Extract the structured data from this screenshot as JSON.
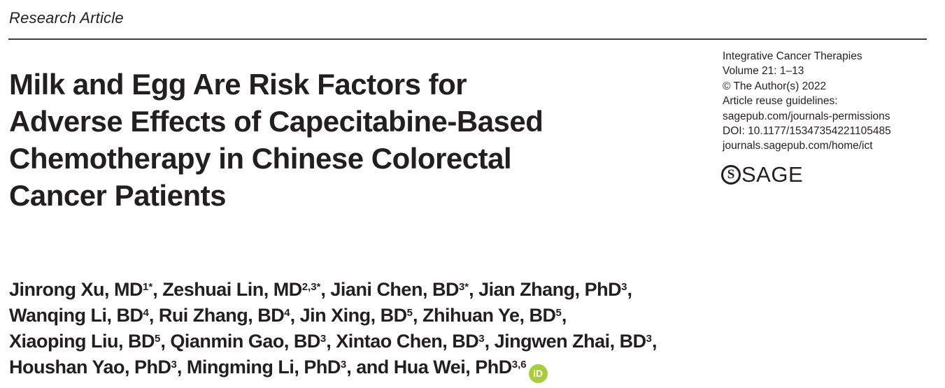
{
  "kicker": "Research Article",
  "title": {
    "lines": [
      "Milk and Egg Are Risk Factors for",
      "Adverse Effects of Capecitabine-Based",
      "Chemotherapy in Chinese Colorectal",
      "Cancer Patients"
    ]
  },
  "journal_info": {
    "journal_name": "Integrative Cancer Therapies",
    "volume_pages": "Volume 21: 1–13",
    "copyright": "© The Author(s) 2022",
    "reuse_label": "Article reuse guidelines:",
    "permissions_url": "sagepub.com/journals-permissions",
    "doi": "DOI: 10.1177/15347354221105485",
    "homepage_url": "journals.sagepub.com/home/ict"
  },
  "publisher": {
    "logo_mark": "S",
    "logo_text": "SAGE"
  },
  "authors": {
    "orcid_label": "iD",
    "lines": [
      [
        {
          "text": "Jinrong Xu, MD"
        },
        {
          "sup": "1*"
        },
        {
          "text": ", Zeshuai Lin, MD"
        },
        {
          "sup": "2,3*"
        },
        {
          "text": ", Jiani Chen, BD"
        },
        {
          "sup": "3*"
        },
        {
          "text": ", Jian Zhang, PhD"
        },
        {
          "sup": "3"
        },
        {
          "text": ","
        }
      ],
      [
        {
          "text": "Wanqing Li, BD"
        },
        {
          "sup": "4"
        },
        {
          "text": ", Rui Zhang, BD"
        },
        {
          "sup": "4"
        },
        {
          "text": ", Jin Xing, BD"
        },
        {
          "sup": "5"
        },
        {
          "text": ", Zhihuan Ye, BD"
        },
        {
          "sup": "5"
        },
        {
          "text": ","
        }
      ],
      [
        {
          "text": "Xiaoping Liu, BD"
        },
        {
          "sup": "5"
        },
        {
          "text": ", Qianmin Gao, BD"
        },
        {
          "sup": "3"
        },
        {
          "text": ", Xintao Chen, BD"
        },
        {
          "sup": "3"
        },
        {
          "text": ", Jingwen Zhai, BD"
        },
        {
          "sup": "3"
        },
        {
          "text": ","
        }
      ],
      [
        {
          "text": "Houshan Yao, PhD"
        },
        {
          "sup": "3"
        },
        {
          "text": ", Mingming Li, PhD"
        },
        {
          "sup": "3"
        },
        {
          "text": ", and Hua Wei, PhD"
        },
        {
          "sup": "3,6"
        },
        {
          "icon": "orcid"
        }
      ]
    ]
  },
  "colors": {
    "text": "#231f20",
    "rule": "#3e3e3e",
    "orcid_green": "#a6ce39",
    "background": "#ffffff"
  }
}
